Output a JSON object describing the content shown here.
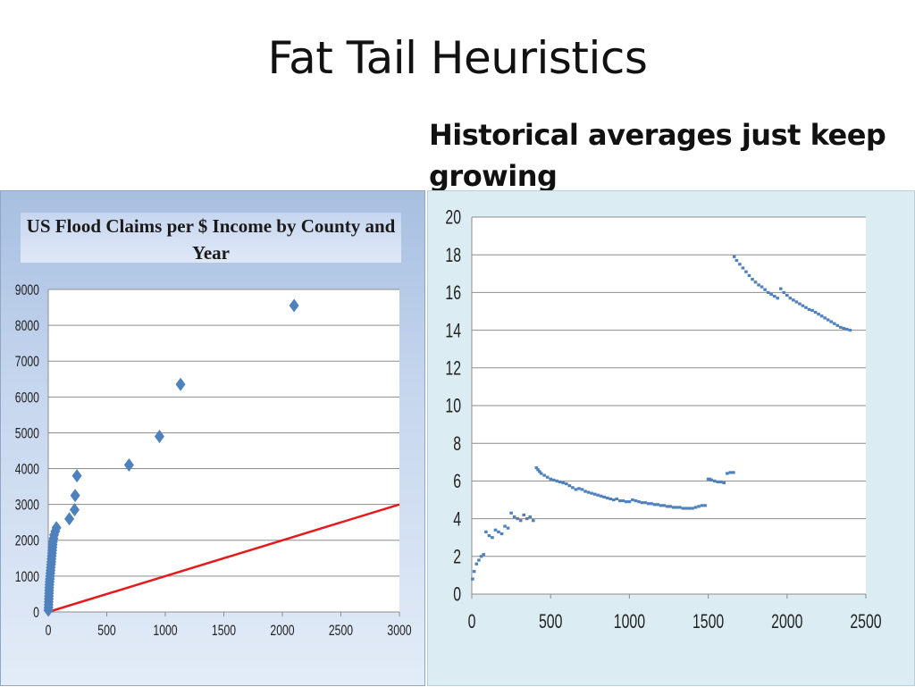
{
  "slide": {
    "title": "Fat Tail Heuristics",
    "subtitle": "Historical averages just keep growing"
  },
  "chart_data": [
    {
      "type": "scatter",
      "title": "US Flood Claims per $ Income by County and Year",
      "xlim": [
        0,
        3000
      ],
      "ylim": [
        0,
        9000
      ],
      "x_ticks": [
        "0",
        "500",
        "1000",
        "1500",
        "2000",
        "2500",
        "3000"
      ],
      "y_ticks": [
        "0",
        "1000",
        "2000",
        "3000",
        "4000",
        "5000",
        "6000",
        "7000",
        "8000",
        "9000"
      ],
      "grid": "horizontal",
      "marker": "diamond",
      "marker_color": "#4f81bd",
      "line_color": "#e41a1c",
      "reference_line": [
        [
          0,
          0
        ],
        [
          3000,
          3000
        ]
      ],
      "points": [
        [
          1,
          50
        ],
        [
          2,
          120
        ],
        [
          3,
          200
        ],
        [
          4,
          280
        ],
        [
          5,
          360
        ],
        [
          6,
          440
        ],
        [
          7,
          520
        ],
        [
          8,
          600
        ],
        [
          9,
          680
        ],
        [
          10,
          760
        ],
        [
          12,
          840
        ],
        [
          14,
          920
        ],
        [
          16,
          1000
        ],
        [
          18,
          1080
        ],
        [
          20,
          1160
        ],
        [
          22,
          1240
        ],
        [
          24,
          1320
        ],
        [
          26,
          1400
        ],
        [
          28,
          1480
        ],
        [
          30,
          1560
        ],
        [
          32,
          1640
        ],
        [
          34,
          1720
        ],
        [
          36,
          1800
        ],
        [
          38,
          1880
        ],
        [
          40,
          1960
        ],
        [
          45,
          2050
        ],
        [
          50,
          2150
        ],
        [
          60,
          2250
        ],
        [
          70,
          2350
        ],
        [
          180,
          2600
        ],
        [
          225,
          2850
        ],
        [
          230,
          3250
        ],
        [
          245,
          3800
        ],
        [
          690,
          4100
        ],
        [
          950,
          4900
        ],
        [
          1130,
          6350
        ],
        [
          2100,
          8550
        ]
      ]
    },
    {
      "type": "scatter",
      "xlim": [
        0,
        2500
      ],
      "ylim": [
        0,
        20
      ],
      "x_ticks": [
        "0",
        "500",
        "1000",
        "1500",
        "2000",
        "2500"
      ],
      "y_ticks": [
        "0",
        "2",
        "4",
        "6",
        "8",
        "10",
        "12",
        "14",
        "16",
        "18",
        "20"
      ],
      "grid": "horizontal",
      "marker_color": "#4f81bd",
      "points": [
        [
          5,
          0.8
        ],
        [
          15,
          1.2
        ],
        [
          30,
          1.6
        ],
        [
          45,
          1.8
        ],
        [
          60,
          2.0
        ],
        [
          75,
          2.1
        ],
        [
          90,
          3.3
        ],
        [
          110,
          3.1
        ],
        [
          130,
          3.0
        ],
        [
          150,
          3.4
        ],
        [
          170,
          3.3
        ],
        [
          190,
          3.2
        ],
        [
          210,
          3.6
        ],
        [
          230,
          3.5
        ],
        [
          250,
          4.3
        ],
        [
          270,
          4.1
        ],
        [
          290,
          4.0
        ],
        [
          310,
          3.9
        ],
        [
          330,
          4.2
        ],
        [
          350,
          4.0
        ],
        [
          370,
          4.1
        ],
        [
          390,
          3.9
        ],
        [
          410,
          6.7
        ],
        [
          420,
          6.6
        ],
        [
          430,
          6.5
        ],
        [
          440,
          6.4
        ],
        [
          460,
          6.3
        ],
        [
          480,
          6.2
        ],
        [
          500,
          6.1
        ],
        [
          520,
          6.05
        ],
        [
          540,
          6.0
        ],
        [
          560,
          5.95
        ],
        [
          580,
          5.9
        ],
        [
          600,
          5.85
        ],
        [
          620,
          5.75
        ],
        [
          640,
          5.65
        ],
        [
          660,
          5.55
        ],
        [
          680,
          5.6
        ],
        [
          700,
          5.55
        ],
        [
          720,
          5.45
        ],
        [
          740,
          5.4
        ],
        [
          760,
          5.35
        ],
        [
          780,
          5.3
        ],
        [
          800,
          5.25
        ],
        [
          820,
          5.2
        ],
        [
          840,
          5.15
        ],
        [
          860,
          5.1
        ],
        [
          880,
          5.05
        ],
        [
          900,
          5.0
        ],
        [
          920,
          5.05
        ],
        [
          940,
          4.95
        ],
        [
          960,
          4.95
        ],
        [
          980,
          4.9
        ],
        [
          1000,
          4.9
        ],
        [
          1020,
          5.0
        ],
        [
          1040,
          4.95
        ],
        [
          1060,
          4.9
        ],
        [
          1080,
          4.85
        ],
        [
          1100,
          4.85
        ],
        [
          1120,
          4.8
        ],
        [
          1140,
          4.8
        ],
        [
          1160,
          4.75
        ],
        [
          1180,
          4.75
        ],
        [
          1200,
          4.7
        ],
        [
          1220,
          4.7
        ],
        [
          1240,
          4.65
        ],
        [
          1260,
          4.65
        ],
        [
          1280,
          4.6
        ],
        [
          1300,
          4.6
        ],
        [
          1320,
          4.6
        ],
        [
          1340,
          4.55
        ],
        [
          1360,
          4.55
        ],
        [
          1380,
          4.55
        ],
        [
          1400,
          4.55
        ],
        [
          1420,
          4.6
        ],
        [
          1440,
          4.65
        ],
        [
          1460,
          4.7
        ],
        [
          1480,
          4.7
        ],
        [
          1500,
          6.1
        ],
        [
          1510,
          6.1
        ],
        [
          1520,
          6.05
        ],
        [
          1540,
          6.0
        ],
        [
          1560,
          5.95
        ],
        [
          1580,
          5.95
        ],
        [
          1600,
          5.9
        ],
        [
          1620,
          6.4
        ],
        [
          1640,
          6.45
        ],
        [
          1660,
          6.45
        ],
        [
          1665,
          17.9
        ],
        [
          1680,
          17.7
        ],
        [
          1700,
          17.5
        ],
        [
          1720,
          17.3
        ],
        [
          1740,
          17.1
        ],
        [
          1760,
          16.9
        ],
        [
          1780,
          16.7
        ],
        [
          1800,
          16.55
        ],
        [
          1820,
          16.4
        ],
        [
          1840,
          16.3
        ],
        [
          1860,
          16.15
        ],
        [
          1880,
          16.0
        ],
        [
          1900,
          15.9
        ],
        [
          1920,
          15.8
        ],
        [
          1940,
          15.7
        ],
        [
          1960,
          16.2
        ],
        [
          1980,
          16.0
        ],
        [
          2000,
          15.85
        ],
        [
          2020,
          15.7
        ],
        [
          2040,
          15.6
        ],
        [
          2060,
          15.5
        ],
        [
          2080,
          15.4
        ],
        [
          2100,
          15.3
        ],
        [
          2120,
          15.2
        ],
        [
          2140,
          15.1
        ],
        [
          2160,
          15.05
        ],
        [
          2180,
          14.95
        ],
        [
          2200,
          14.85
        ],
        [
          2220,
          14.75
        ],
        [
          2240,
          14.65
        ],
        [
          2260,
          14.55
        ],
        [
          2280,
          14.45
        ],
        [
          2300,
          14.35
        ],
        [
          2320,
          14.25
        ],
        [
          2340,
          14.15
        ],
        [
          2360,
          14.1
        ],
        [
          2380,
          14.05
        ],
        [
          2400,
          14.0
        ]
      ]
    }
  ]
}
